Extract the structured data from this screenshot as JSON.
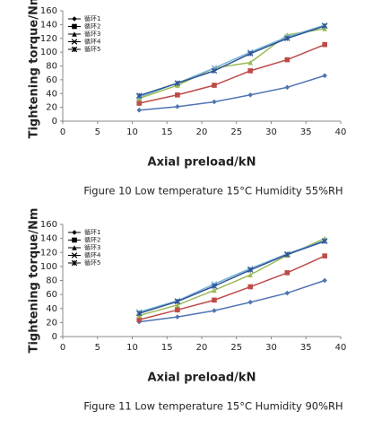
{
  "charts": [
    {
      "chart_data": {
        "type": "line",
        "caption": "Figure 10  Low temperature 15°C Humidity 55%RH",
        "x_label": "Axial preload/kN",
        "y_label": "Tightening torque/Nm",
        "x": [
          11,
          16.5,
          21.8,
          27,
          32.3,
          37.7
        ],
        "xlim": [
          0,
          40
        ],
        "xticks": [
          0,
          5,
          10,
          15,
          20,
          25,
          30,
          35,
          40
        ],
        "ylim": [
          0,
          160
        ],
        "yticks": [
          0,
          20,
          40,
          60,
          80,
          100,
          120,
          140,
          160
        ],
        "legend": "upper-left",
        "series": [
          {
            "name": "循环1",
            "color": "#4f74b3",
            "marker": "diamond",
            "values": [
              16,
              21,
              28,
              38,
              49,
              66
            ]
          },
          {
            "name": "循环2",
            "color": "#be4b48",
            "marker": "square",
            "values": [
              26,
              38,
              52,
              73,
              89,
              111
            ]
          },
          {
            "name": "循环3",
            "color": "#9bbb59",
            "marker": "triangle",
            "values": [
              33,
              52,
              77,
              85,
              125,
              134
            ]
          },
          {
            "name": "循环4",
            "color": "#7ab3d6",
            "marker": "x",
            "values": [
              35,
              55,
              77,
              100,
              122,
              139
            ]
          },
          {
            "name": "循环5",
            "color": "#2f5597",
            "marker": "star",
            "values": [
              37,
              55,
              73,
              98,
              120,
              138
            ]
          }
        ]
      }
    },
    {
      "chart_data": {
        "type": "line",
        "caption": "Figure 11  Low temperature 15°C Humidity 90%RH",
        "x_label": "Axial preload/kN",
        "y_label": "Tightening torque/Nm",
        "x": [
          11,
          16.5,
          21.8,
          27,
          32.3,
          37.7
        ],
        "xlim": [
          0,
          40
        ],
        "xticks": [
          0,
          5,
          10,
          15,
          20,
          25,
          30,
          35,
          40
        ],
        "ylim": [
          0,
          160
        ],
        "yticks": [
          0,
          20,
          40,
          60,
          80,
          100,
          120,
          140,
          160
        ],
        "legend": "upper-left",
        "series": [
          {
            "name": "循环1",
            "color": "#4f74b3",
            "marker": "diamond",
            "values": [
              21,
              28,
              37,
              49,
              62,
              80
            ]
          },
          {
            "name": "循环2",
            "color": "#be4b48",
            "marker": "square",
            "values": [
              24,
              38,
              52,
              71,
              91,
              115
            ]
          },
          {
            "name": "循环3",
            "color": "#9bbb59",
            "marker": "triangle",
            "values": [
              30,
              45,
              66,
              88,
              116,
              140
            ]
          },
          {
            "name": "循环4",
            "color": "#7ab3d6",
            "marker": "x",
            "values": [
              35,
              51,
              75,
              97,
              118,
              137
            ]
          },
          {
            "name": "循环5",
            "color": "#2f5597",
            "marker": "star",
            "values": [
              33,
              50,
              72,
              95,
              117,
              136
            ]
          }
        ]
      }
    }
  ]
}
